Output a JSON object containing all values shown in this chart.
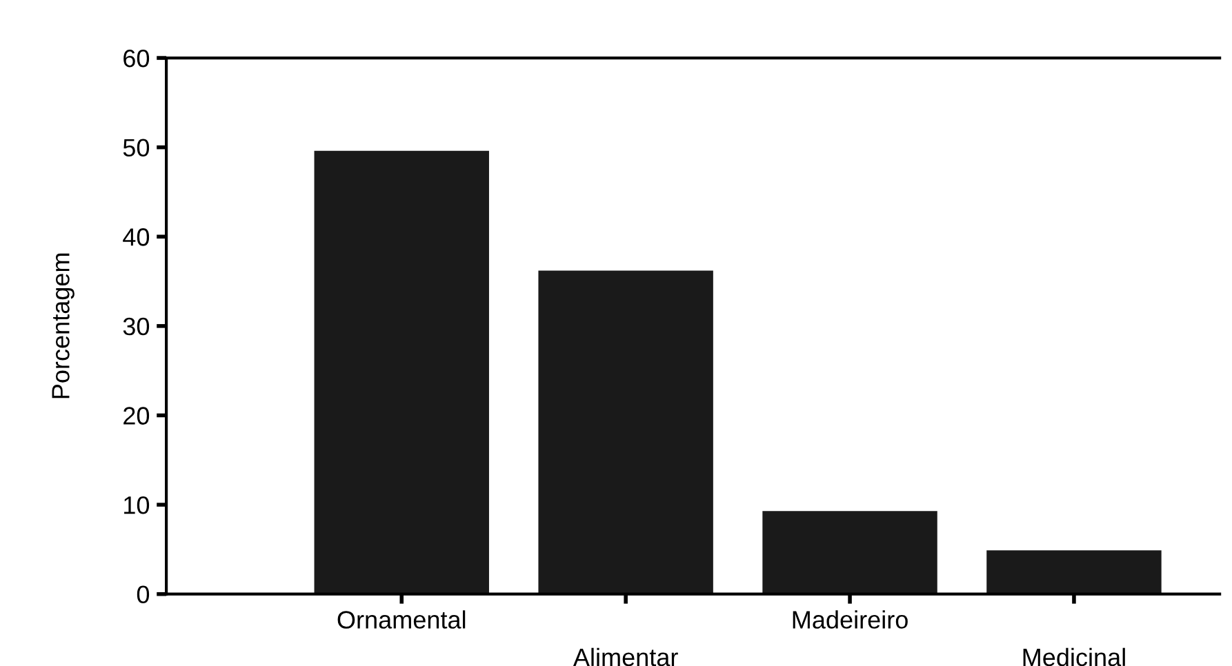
{
  "chart_data": {
    "type": "bar",
    "ylabel": "Porcentagem",
    "categories": [
      "Ornamental",
      "Alimentar",
      "Madeireiro",
      "Medicinal"
    ],
    "values": [
      49.6,
      36.2,
      9.3,
      4.9
    ],
    "color": "#1a1a1a",
    "ylim": [
      0,
      60
    ],
    "yticks": [
      0,
      10,
      20,
      30,
      40,
      50,
      60
    ],
    "grid": false
  }
}
